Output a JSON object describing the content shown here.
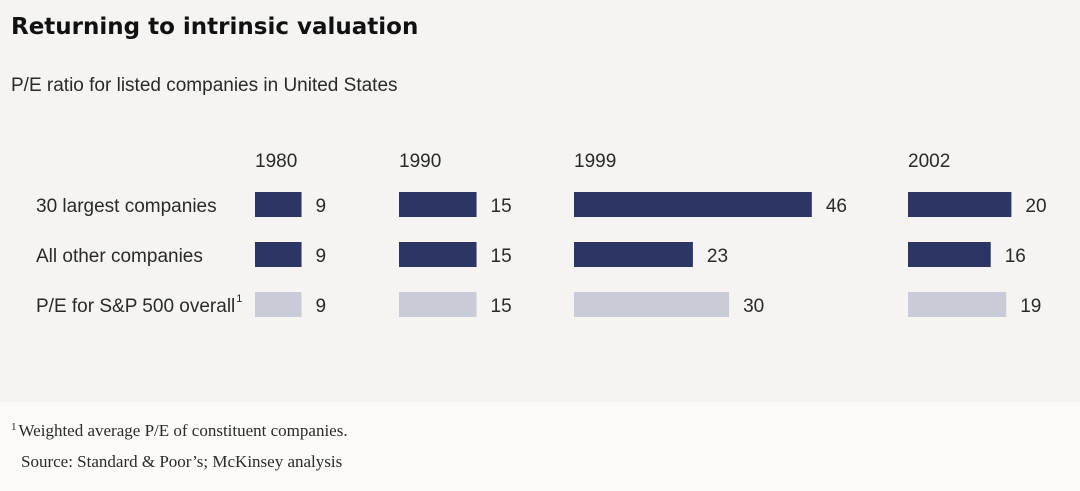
{
  "title": "Returning to intrinsic valuation",
  "subtitle": "P/E ratio for listed companies in United States",
  "colors": {
    "dark_bar": "#2c3563",
    "light_bar": "#c9ccd6",
    "background": "#f5f4f2"
  },
  "chart_data": {
    "type": "bar",
    "orientation": "horizontal",
    "title": "Returning to intrinsic valuation",
    "subtitle": "P/E ratio for listed companies in United States",
    "unit": "P/E ratio",
    "categories": [
      "30 largest companies",
      "All other companies",
      "P/E for S&P 500 overall"
    ],
    "category_footnote": [
      "",
      "",
      "1"
    ],
    "panels": [
      {
        "year": "1980",
        "values": [
          9,
          9,
          9
        ]
      },
      {
        "year": "1990",
        "values": [
          15,
          15,
          15
        ]
      },
      {
        "year": "1999",
        "values": [
          46,
          23,
          30
        ]
      },
      {
        "year": "2002",
        "values": [
          20,
          16,
          19
        ]
      }
    ],
    "series_styles": [
      "dark",
      "dark",
      "light"
    ]
  },
  "footnote": {
    "mark": "1",
    "text": "Weighted average P/E of constituent companies."
  },
  "source": "Source: Standard & Poor’s; McKinsey analysis"
}
